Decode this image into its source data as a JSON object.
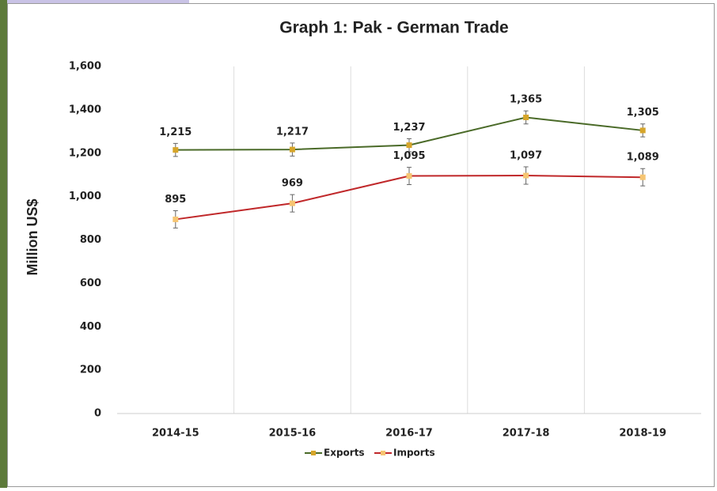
{
  "chart_data": {
    "type": "line",
    "title": "Graph 1: Pak - German Trade",
    "y_label": "Million US$",
    "categories": [
      "2014-15",
      "2015-16",
      "2016-17",
      "2017-18",
      "2018-19"
    ],
    "series": [
      {
        "name": "Exports",
        "color": "#4a6a28",
        "marker_color": "#d6a52a",
        "values": [
          1215,
          1217,
          1237,
          1365,
          1305
        ],
        "value_labels": [
          "1,215",
          "1,217",
          "1,237",
          "1,365",
          "1,305"
        ],
        "errors": [
          30,
          30,
          30,
          30,
          30
        ]
      },
      {
        "name": "Imports",
        "color": "#c0282a",
        "marker_color": "#f6c572",
        "values": [
          895,
          969,
          1095,
          1097,
          1089
        ],
        "value_labels": [
          "895",
          "969",
          "1,095",
          "1,097",
          "1,089"
        ],
        "errors": [
          40,
          40,
          40,
          40,
          40
        ]
      }
    ],
    "ylim": [
      0,
      1600
    ],
    "yticks": [
      0,
      200,
      400,
      600,
      800,
      {
        "value": 1000,
        "label": "1,000"
      },
      {
        "value": 1200,
        "label": "1,200"
      },
      {
        "value": 1400,
        "label": "1,400"
      },
      {
        "value": 1600,
        "label": "1,600"
      }
    ],
    "legend": "bottom"
  }
}
